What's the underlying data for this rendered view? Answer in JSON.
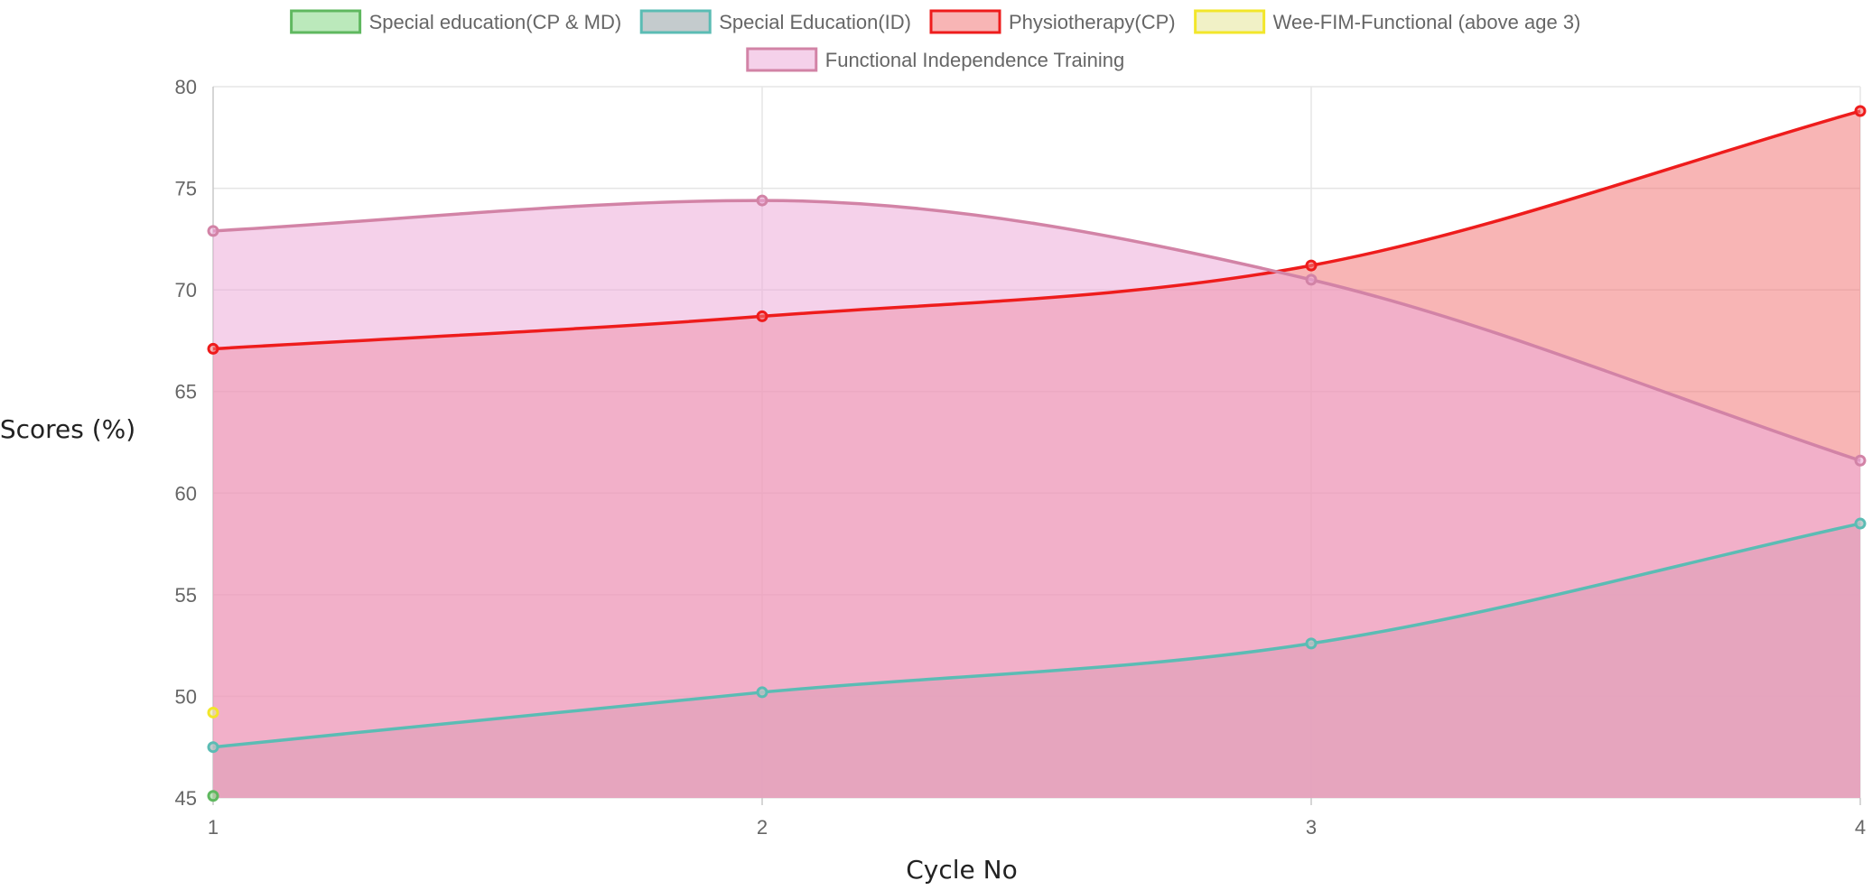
{
  "chart_data": {
    "type": "area",
    "title": "",
    "xlabel": "Cycle No",
    "ylabel": "Scores (%)",
    "x": [
      1,
      2,
      3,
      4
    ],
    "xlim": [
      1,
      4
    ],
    "ylim": [
      45,
      80
    ],
    "y_ticks": [
      45,
      50,
      55,
      60,
      65,
      70,
      75,
      80
    ],
    "grid": true,
    "legend_position": "top",
    "series": [
      {
        "name": "Special education(CP & MD)",
        "values": [
          45.1,
          null,
          null,
          null
        ],
        "line_color": "#5fb85f",
        "fill_color": "rgba(141,218,141,0.6)"
      },
      {
        "name": "Special Education(ID)",
        "values": [
          47.5,
          50.2,
          52.6,
          58.5
        ],
        "line_color": "#5bbcb4",
        "fill_color": "rgba(186,194,196,0.85)"
      },
      {
        "name": "Physiotherapy(CP)",
        "values": [
          67.1,
          68.7,
          71.2,
          78.8
        ],
        "line_color": "#ee1c1c",
        "fill_color": "rgba(242,120,120,0.55)"
      },
      {
        "name": "Wee-FIM-Functional (above age 3)",
        "values": [
          49.2,
          null,
          null,
          null
        ],
        "line_color": "#f2e62a",
        "fill_color": "rgba(232,232,160,0.6)"
      },
      {
        "name": "Functional Independence Training",
        "values": [
          72.9,
          74.4,
          70.5,
          61.6
        ],
        "line_color": "#d283a6",
        "fill_color": "rgba(236,172,216,0.55)"
      }
    ]
  }
}
